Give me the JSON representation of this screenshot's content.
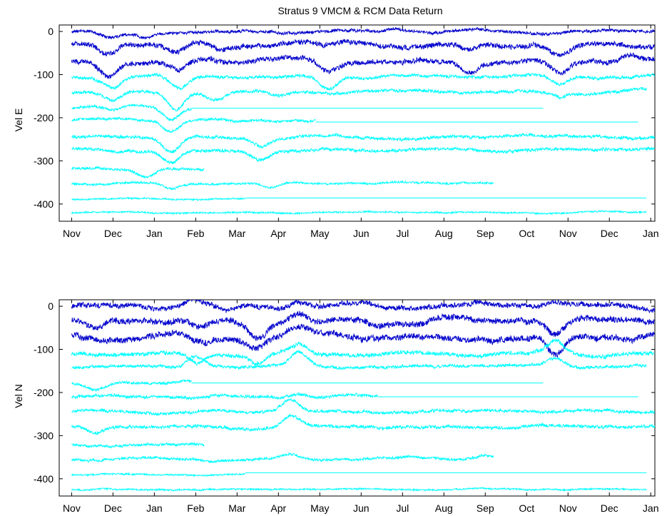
{
  "chart_data": [
    {
      "type": "line",
      "title": "Stratus 9 VMCM & RCM Data Return",
      "ylabel": "Vel E",
      "xlabel": "",
      "ylim": [
        -440,
        15
      ],
      "yticks": [
        0,
        -100,
        -200,
        -300,
        -400
      ],
      "xlim": [
        -0.3,
        14.1
      ],
      "xtick_labels": [
        "Nov",
        "Dec",
        "Jan",
        "Feb",
        "Mar",
        "Apr",
        "May",
        "Jun",
        "Jul",
        "Aug",
        "Sep",
        "Oct",
        "Nov",
        "Dec",
        "Jan"
      ],
      "colors": {
        "vmcm": "#0000cc",
        "rcm": "#00ffff"
      },
      "series": [
        {
          "instrument": "vmcm",
          "offset": 0,
          "start": 0,
          "end": 14.1,
          "gap": null,
          "noise": 3,
          "events": [
            [
              0.9,
              -15
            ],
            [
              1.8,
              -10
            ],
            [
              6.0,
              0
            ],
            [
              7.8,
              8
            ],
            [
              11.4,
              -5
            ]
          ]
        },
        {
          "instrument": "vmcm",
          "offset": -30,
          "start": 0,
          "end": 14.1,
          "gap": null,
          "noise": 5,
          "events": [
            [
              0.9,
              -28
            ],
            [
              2.5,
              -18
            ],
            [
              3.6,
              -12
            ],
            [
              6.1,
              -12
            ],
            [
              9.6,
              -12
            ],
            [
              11.8,
              -28
            ],
            [
              13.5,
              5
            ]
          ]
        },
        {
          "instrument": "vmcm",
          "offset": -70,
          "start": 0,
          "end": 14.1,
          "gap": null,
          "noise": 5,
          "events": [
            [
              0.9,
              -30
            ],
            [
              2.6,
              -25
            ],
            [
              6.2,
              -25
            ],
            [
              9.6,
              -25
            ],
            [
              11.8,
              -30
            ],
            [
              13.5,
              15
            ]
          ]
        },
        {
          "instrument": "rcm",
          "offset": -105,
          "start": 0,
          "end": 14.1,
          "gap": null,
          "noise": 3,
          "events": [
            [
              1.0,
              -25
            ],
            [
              2.6,
              -30
            ],
            [
              6.2,
              -30
            ],
            [
              11.8,
              -20
            ]
          ]
        },
        {
          "instrument": "rcm",
          "offset": -140,
          "start": 0,
          "end": 13.9,
          "gap": null,
          "noise": 3,
          "events": [
            [
              1.0,
              -20
            ],
            [
              2.5,
              -40
            ],
            [
              3.5,
              -15
            ],
            [
              5.0,
              -10
            ],
            [
              11.8,
              -10
            ]
          ]
        },
        {
          "instrument": "rcm",
          "offset": -175,
          "start": 0,
          "end": 2.9,
          "gap": [
            2.9,
            11.4,
            -178
          ],
          "noise": 2.5,
          "events": [
            [
              1.0,
              -10
            ],
            [
              2.4,
              -30
            ]
          ]
        },
        {
          "instrument": "rcm",
          "offset": -205,
          "start": 0,
          "end": 5.9,
          "gap": [
            5.9,
            13.7,
            -210
          ],
          "noise": 2.5,
          "events": [
            [
              2.4,
              -25
            ],
            [
              4.0,
              -5
            ]
          ]
        },
        {
          "instrument": "rcm",
          "offset": -245,
          "start": 0,
          "end": 14.1,
          "gap": null,
          "noise": 3,
          "events": [
            [
              2.4,
              -30
            ],
            [
              4.6,
              -15
            ]
          ]
        },
        {
          "instrument": "rcm",
          "offset": -275,
          "start": 0,
          "end": 14.1,
          "gap": null,
          "noise": 3,
          "events": [
            [
              2.4,
              -30
            ],
            [
              4.6,
              -20
            ]
          ]
        },
        {
          "instrument": "rcm",
          "offset": -318,
          "start": 0,
          "end": 3.2,
          "gap": null,
          "noise": 2.5,
          "events": [
            [
              1.8,
              -20
            ]
          ]
        },
        {
          "instrument": "rcm",
          "offset": -352,
          "start": 0,
          "end": 10.2,
          "gap": null,
          "noise": 2,
          "events": [
            [
              2.4,
              -12
            ],
            [
              4.8,
              -12
            ]
          ]
        },
        {
          "instrument": "rcm",
          "offset": -388,
          "start": 0,
          "end": 4.2,
          "gap": [
            4.2,
            13.9,
            -386
          ],
          "noise": 1.5,
          "events": []
        },
        {
          "instrument": "rcm",
          "offset": -420,
          "start": 0,
          "end": 13.9,
          "gap": null,
          "noise": 1.5,
          "events": []
        }
      ]
    },
    {
      "type": "line",
      "title": "",
      "ylabel": "Vel N",
      "xlabel": "",
      "ylim": [
        -440,
        15
      ],
      "yticks": [
        0,
        -100,
        -200,
        -300,
        -400
      ],
      "xlim": [
        -0.3,
        14.1
      ],
      "xtick_labels": [
        "Nov",
        "Dec",
        "Jan",
        "Feb",
        "Mar",
        "Apr",
        "May",
        "Jun",
        "Jul",
        "Aug",
        "Sep",
        "Oct",
        "Nov",
        "Dec",
        "Jan"
      ],
      "colors": {
        "vmcm": "#0000cc",
        "rcm": "#00ffff"
      },
      "series": [
        {
          "instrument": "vmcm",
          "offset": 0,
          "start": 0,
          "end": 14.1,
          "gap": null,
          "noise": 5,
          "events": [
            [
              2.9,
              12
            ],
            [
              3.8,
              -15
            ],
            [
              5.5,
              15
            ],
            [
              11.7,
              12
            ]
          ]
        },
        {
          "instrument": "vmcm",
          "offset": -35,
          "start": 0,
          "end": 14.1,
          "gap": null,
          "noise": 6,
          "events": [
            [
              0.6,
              -25
            ],
            [
              3.1,
              -20
            ],
            [
              4.5,
              -30
            ],
            [
              5.5,
              20
            ],
            [
              11.7,
              -35
            ],
            [
              13.5,
              10
            ]
          ]
        },
        {
          "instrument": "vmcm",
          "offset": -70,
          "start": 0,
          "end": 14.1,
          "gap": null,
          "noise": 6,
          "events": [
            [
              3.2,
              -15
            ],
            [
              4.5,
              -20
            ],
            [
              5.5,
              20
            ],
            [
              11.7,
              -40
            ]
          ]
        },
        {
          "instrument": "rcm",
          "offset": -110,
          "start": 0,
          "end": 14.1,
          "gap": null,
          "noise": 4,
          "events": [
            [
              3.0,
              -25
            ],
            [
              4.5,
              -20
            ],
            [
              5.5,
              20
            ],
            [
              11.7,
              30
            ]
          ]
        },
        {
          "instrument": "rcm",
          "offset": -140,
          "start": 0,
          "end": 13.9,
          "gap": null,
          "noise": 3,
          "events": [
            [
              3.0,
              25
            ],
            [
              5.5,
              35
            ],
            [
              11.7,
              20
            ]
          ]
        },
        {
          "instrument": "rcm",
          "offset": -178,
          "start": 0,
          "end": 2.9,
          "gap": [
            2.9,
            11.4,
            -178
          ],
          "noise": 2.5,
          "events": [
            [
              0.6,
              -15
            ],
            [
              2.7,
              8
            ]
          ]
        },
        {
          "instrument": "rcm",
          "offset": -210,
          "start": 0,
          "end": 7.4,
          "gap": [
            7.4,
            13.7,
            -210
          ],
          "noise": 3,
          "events": [
            [
              5.5,
              10
            ]
          ]
        },
        {
          "instrument": "rcm",
          "offset": -245,
          "start": 0,
          "end": 14.1,
          "gap": null,
          "noise": 3,
          "events": [
            [
              5.3,
              30
            ]
          ]
        },
        {
          "instrument": "rcm",
          "offset": -280,
          "start": 0,
          "end": 14.1,
          "gap": null,
          "noise": 3,
          "events": [
            [
              0.6,
              -15
            ],
            [
              5.3,
              30
            ]
          ]
        },
        {
          "instrument": "rcm",
          "offset": -322,
          "start": 0,
          "end": 3.2,
          "gap": null,
          "noise": 2.5,
          "events": []
        },
        {
          "instrument": "rcm",
          "offset": -355,
          "start": 0,
          "end": 10.2,
          "gap": null,
          "noise": 2.5,
          "events": [
            [
              5.3,
              12
            ],
            [
              10.0,
              8
            ]
          ]
        },
        {
          "instrument": "rcm",
          "offset": -390,
          "start": 0,
          "end": 4.2,
          "gap": [
            4.2,
            13.9,
            -386
          ],
          "noise": 1.5,
          "events": []
        },
        {
          "instrument": "rcm",
          "offset": -425,
          "start": 0,
          "end": 13.9,
          "gap": null,
          "noise": 1.5,
          "events": []
        }
      ]
    }
  ]
}
